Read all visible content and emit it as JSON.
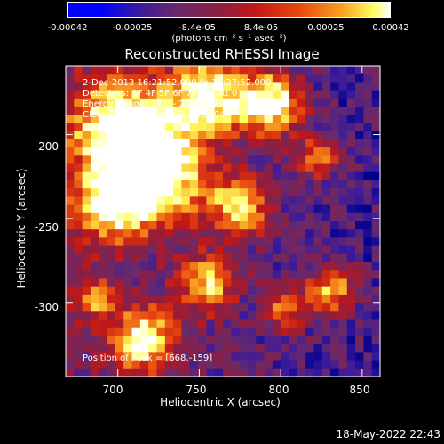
{
  "colorbar": {
    "ticks": [
      "-0.00042",
      "-0.00025",
      "-8.4e-05",
      "8.4e-05",
      "0.00025",
      "0.00042"
    ],
    "tick_values": [
      -0.00042,
      -0.00025,
      -8.4e-05,
      8.4e-05,
      0.00025,
      0.00042
    ],
    "unit": "(photons cm⁻² s⁻¹ asec⁻²)"
  },
  "plot": {
    "title": "Reconstructed RHESSI Image",
    "annotations": [
      "2-Dec-2013 16:21:52.000 to 16:27:52.000",
      "Detectors: 3F 4F 5F 6F 7F 8F, Att 0",
      "Energy Range: 12.0 - 25.0 keV",
      "Clean     Total counts: 1.70E+04"
    ],
    "peak_text": "Position of Peak = [668,-159]"
  },
  "footer": {
    "timestamp": "18-May-2022 22:43"
  },
  "colors": {
    "background": "#000000",
    "text": "#ffffff"
  },
  "chart_data": {
    "type": "heatmap",
    "title": "Reconstructed RHESSI Image",
    "xlabel": "Heliocentric X (arcsec)",
    "ylabel": "Heliocentric Y (arcsec)",
    "x_ticks": [
      700,
      750,
      800,
      850
    ],
    "y_ticks": [
      -200,
      -250,
      -300
    ],
    "xlim": [
      668,
      861
    ],
    "ylim": [
      -344,
      -159
    ],
    "peak_position": [
      668,
      -159
    ],
    "colormap_range": [
      -0.00042,
      0.00042
    ]
  }
}
